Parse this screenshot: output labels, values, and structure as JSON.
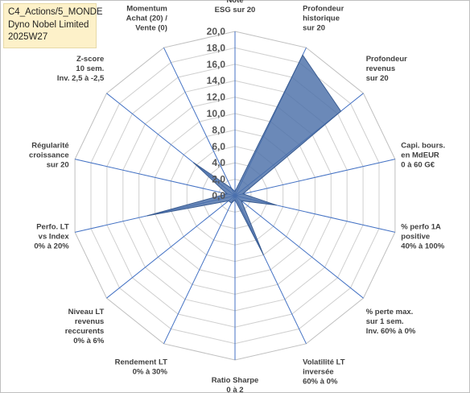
{
  "header": {
    "line1": "C4_Actions/5_MONDE",
    "line2": "Dyno Nobel Limited",
    "line3": "2025W27"
  },
  "chart_data": {
    "type": "radar",
    "ylim": [
      0,
      20
    ],
    "ticks": [
      "0,0",
      "2,0",
      "4,0",
      "6,0",
      "8,0",
      "10,0",
      "12,0",
      "14,0",
      "16,0",
      "18,0",
      "20,0"
    ],
    "axes": [
      {
        "lines": [
          "Note",
          "ESG sur 20"
        ],
        "value": 0.5
      },
      {
        "lines": [
          "Profondeur",
          "historique",
          "sur 20"
        ],
        "value": 19.0
      },
      {
        "lines": [
          "Profondeur",
          "revenus",
          "sur 20"
        ],
        "value": 16.5
      },
      {
        "lines": [
          "Capi. bours.",
          "en MdEUR",
          "0 à 60 G€"
        ],
        "value": 1.0
      },
      {
        "lines": [
          "% perfo 1A",
          "positive",
          "40% à 100%"
        ],
        "value": 5.2
      },
      {
        "lines": [
          "% perte max.",
          "sur 1 sem.",
          "Inv. 60% à 0%"
        ],
        "value": 1.0
      },
      {
        "lines": [
          "Volatilité LT",
          "inversée",
          "60% à 0%"
        ],
        "value": 8.0
      },
      {
        "lines": [
          "Ratio Sharpe",
          "0 à 2"
        ],
        "value": 0.5
      },
      {
        "lines": [
          "Rendement LT",
          "0% à 30%"
        ],
        "value": 1.0
      },
      {
        "lines": [
          "Niveau LT",
          "revenus",
          "reccurents",
          "0% à 6%"
        ],
        "value": 1.0
      },
      {
        "lines": [
          "Perfo. LT",
          "vs Index",
          "0% à 20%"
        ],
        "value": 11.0
      },
      {
        "lines": [
          "Régularité",
          "croissance",
          "sur 20"
        ],
        "value": 1.0
      },
      {
        "lines": [
          "Z-score",
          "10 sem.",
          "Inv. 2,5 à -2,5"
        ],
        "value": 6.5
      },
      {
        "lines": [
          "Momentum",
          "Achat (20) /",
          "Vente (0)"
        ],
        "value": 1.0
      }
    ],
    "grid": true,
    "series_color": "#4a6fa8"
  }
}
